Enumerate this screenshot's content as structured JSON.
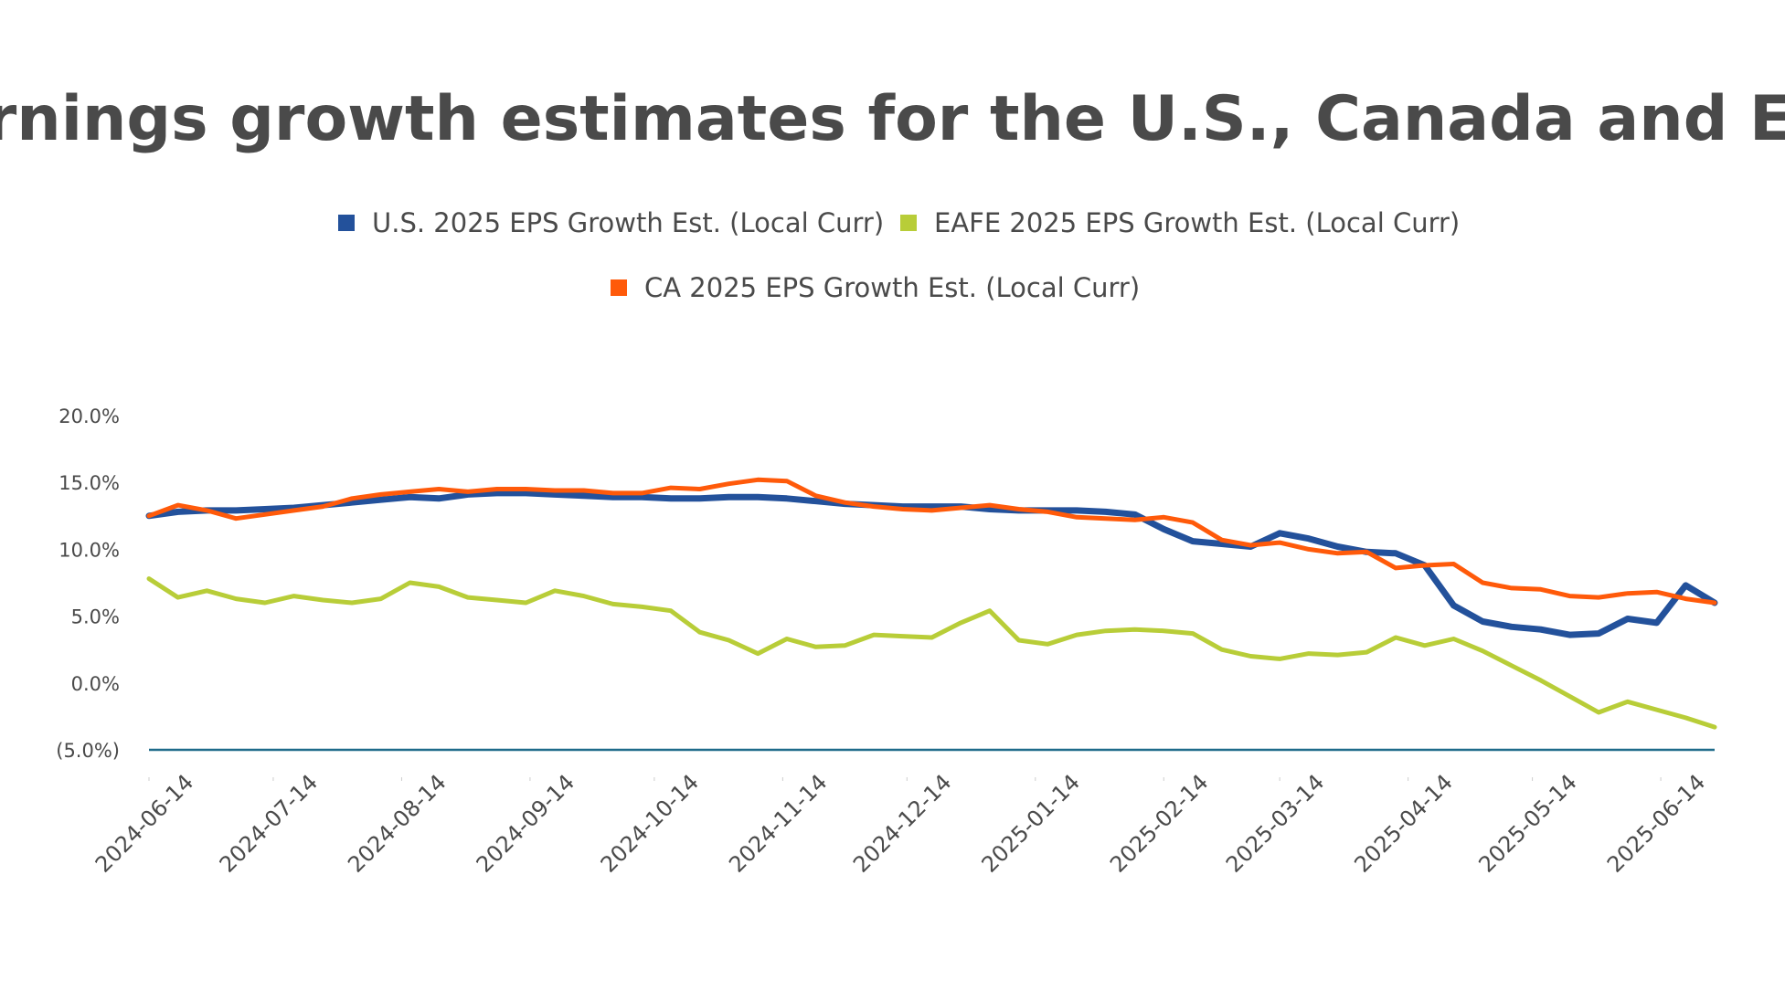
{
  "chart_data": {
    "type": "line",
    "title": "Earnings growth estimates for the U.S., Canada and EAF",
    "xlabel": "",
    "ylabel": "",
    "ylim": [
      -5,
      20
    ],
    "y_ticks": [
      20,
      15,
      10,
      5,
      0,
      -5
    ],
    "y_tick_labels": [
      "20.0%",
      "15.0%",
      "10.0%",
      "5.0%",
      "0.0%",
      "(5.0%)"
    ],
    "x_tick_labels": [
      "2024-06-14",
      "2024-07-14",
      "2024-08-14",
      "2024-09-14",
      "2024-10-14",
      "2024-11-14",
      "2024-12-14",
      "2025-01-14",
      "2025-02-14",
      "2025-03-14",
      "2025-04-14",
      "2025-05-14",
      "2025-06-14"
    ],
    "x_start": "2024-06-14",
    "x_step_days": 7,
    "grid": false,
    "legend_placement": "top",
    "series": [
      {
        "name": "U.S. 2025 EPS Growth Est. (Local Curr)",
        "color": "#23519b",
        "values": [
          12.5,
          12.8,
          12.9,
          12.9,
          13.0,
          13.1,
          13.3,
          13.5,
          13.7,
          13.9,
          13.8,
          14.1,
          14.2,
          14.2,
          14.1,
          14.0,
          13.9,
          13.9,
          13.8,
          13.8,
          13.9,
          13.9,
          13.8,
          13.6,
          13.4,
          13.3,
          13.2,
          13.2,
          13.2,
          13.0,
          12.9,
          12.9,
          12.9,
          12.8,
          12.6,
          11.5,
          10.6,
          10.4,
          10.2,
          11.2,
          10.8,
          10.2,
          9.8,
          9.7,
          8.8,
          5.8,
          4.6,
          4.2,
          4.0,
          3.6,
          3.7,
          4.8,
          4.5,
          7.3,
          6.0
        ]
      },
      {
        "name": "EAFE 2025 EPS Growth Est. (Local Curr)",
        "color": "#b8cd38",
        "values": [
          7.8,
          6.4,
          6.9,
          6.3,
          6.0,
          6.5,
          6.2,
          6.0,
          6.3,
          7.5,
          7.2,
          6.4,
          6.2,
          6.0,
          6.9,
          6.5,
          5.9,
          5.7,
          5.4,
          3.8,
          3.2,
          2.2,
          3.3,
          2.7,
          2.8,
          3.6,
          3.5,
          3.4,
          4.5,
          5.4,
          3.2,
          2.9,
          3.6,
          3.9,
          4.0,
          3.9,
          3.7,
          2.5,
          2.0,
          1.8,
          2.2,
          2.1,
          2.3,
          3.4,
          2.8,
          3.3,
          2.4,
          1.3,
          0.2,
          -1.0,
          -2.2,
          -1.4,
          -2.0,
          -2.6,
          -3.3
        ]
      },
      {
        "name": "CA 2025 EPS Growth Est. (Local Curr)",
        "color": "#ff5a0a",
        "values": [
          12.5,
          13.3,
          12.9,
          12.3,
          12.6,
          12.9,
          13.2,
          13.8,
          14.1,
          14.3,
          14.5,
          14.3,
          14.5,
          14.5,
          14.4,
          14.4,
          14.2,
          14.2,
          14.6,
          14.5,
          14.9,
          15.2,
          15.1,
          14.0,
          13.5,
          13.2,
          13.0,
          12.9,
          13.1,
          13.3,
          13.0,
          12.8,
          12.4,
          12.3,
          12.2,
          12.4,
          12.0,
          10.7,
          10.3,
          10.5,
          10.0,
          9.7,
          9.8,
          8.6,
          8.8,
          8.9,
          7.5,
          7.1,
          7.0,
          6.5,
          6.4,
          6.7,
          6.8,
          6.3,
          6.0
        ]
      }
    ],
    "axis_color": "#1f6b8a"
  }
}
